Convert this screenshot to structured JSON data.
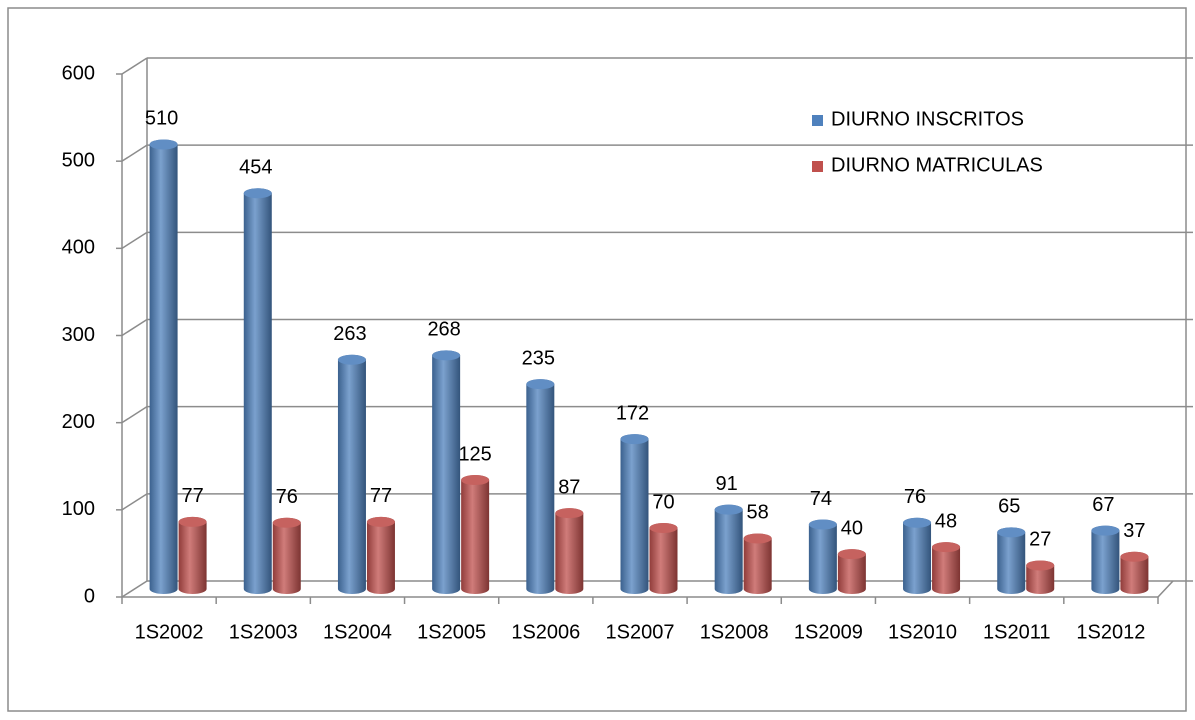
{
  "chart_data": {
    "type": "bar3d",
    "categories": [
      "1S2002",
      "1S2003",
      "1S2004",
      "1S2005",
      "1S2006",
      "1S2007",
      "1S2008",
      "1S2009",
      "1S2010",
      "1S2011",
      "1S2012"
    ],
    "series": [
      {
        "name": "DIURNO INSCRITOS",
        "color": "#4f81bd",
        "values": [
          510,
          454,
          263,
          268,
          235,
          172,
          91,
          74,
          76,
          65,
          67
        ]
      },
      {
        "name": "DIURNO MATRICULAS",
        "color": "#c0504d",
        "values": [
          77,
          76,
          77,
          125,
          87,
          70,
          58,
          40,
          48,
          27,
          37
        ]
      }
    ],
    "ylim": [
      0,
      600
    ],
    "yticks": [
      0,
      100,
      200,
      300,
      400,
      500,
      600
    ],
    "grid": true,
    "legend": "upper right"
  }
}
